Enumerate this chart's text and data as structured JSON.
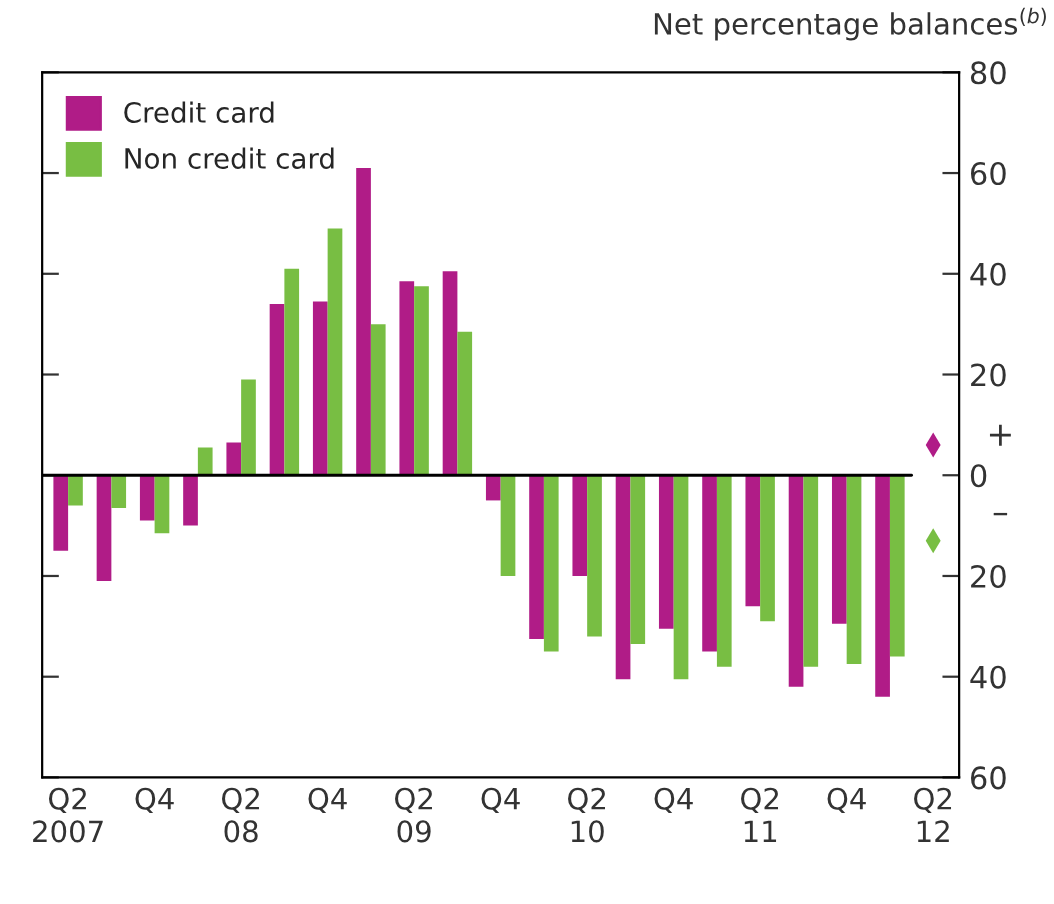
{
  "chart_data": {
    "type": "bar",
    "ylabel": "Net percentage balances$^{(b)}$",
    "categories": [
      "Q2\n2007",
      null,
      "Q4",
      null,
      "Q2\n08",
      null,
      "Q4",
      null,
      "Q2\n09",
      null,
      "Q4",
      null,
      "Q2\n10",
      null,
      "Q4",
      null,
      "Q2\n11",
      null,
      "Q4",
      null,
      "Q2\n12"
    ],
    "series": [
      {
        "name": "Credit card",
        "color": "#b01c87",
        "values": [
          -15,
          -21,
          -9,
          -10,
          6.5,
          34,
          34.5,
          61,
          38.5,
          40.5,
          -5,
          -32.5,
          -20,
          -40.5,
          -30.5,
          -35,
          -26,
          -42,
          -29.5,
          -44,
          null
        ]
      },
      {
        "name": "Non credit card",
        "color": "#78be43",
        "values": [
          -6,
          -6.5,
          -11.5,
          5.5,
          19,
          41,
          49,
          30,
          37.5,
          28.5,
          -20,
          -35,
          -32,
          -33.5,
          -40.5,
          -38,
          -29,
          -38,
          -37.5,
          -36,
          null
        ]
      },
      {
        "type": "scatter",
        "marker": "diamond",
        "color": "#b01c87",
        "values": [
          null,
          null,
          null,
          null,
          null,
          null,
          null,
          null,
          null,
          null,
          null,
          null,
          null,
          null,
          null,
          null,
          null,
          null,
          null,
          null,
          6
        ]
      },
      {
        "type": "scatter",
        "marker": "diamond",
        "color": "#78be43",
        "values": [
          null,
          null,
          null,
          null,
          null,
          null,
          null,
          null,
          null,
          null,
          null,
          null,
          null,
          null,
          null,
          null,
          null,
          null,
          null,
          null,
          -13
        ]
      }
    ],
    "ylim": [
      -60,
      80
    ],
    "yticks": [
      {
        "value": -60,
        "label": "60"
      },
      {
        "value": -40,
        "label": "40"
      },
      {
        "value": -20,
        "label": "20"
      },
      0,
      20,
      40,
      60,
      80
    ],
    "annotations": [
      "+",
      "–"
    ],
    "legend": "top left"
  }
}
